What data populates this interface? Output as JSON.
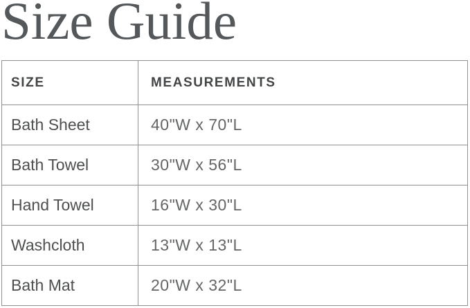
{
  "page": {
    "title": "Size Guide"
  },
  "colors": {
    "title_text": "#54585a",
    "header_text": "#424445",
    "row_size_text": "#4d4f50",
    "row_measurement_text": "#636566",
    "table_border": "#8f8f8f",
    "background": "#ffffff"
  },
  "table": {
    "columns": [
      {
        "label": "SIZE"
      },
      {
        "label": "MEASUREMENTS"
      }
    ],
    "rows": [
      {
        "size": "Bath Sheet",
        "measurements": "40\"W x 70\"L"
      },
      {
        "size": "Bath Towel",
        "measurements": "30\"W x 56\"L"
      },
      {
        "size": "Hand Towel",
        "measurements": "16\"W x 30\"L"
      },
      {
        "size": "Washcloth",
        "measurements": "13\"W x 13\"L"
      },
      {
        "size": "Bath Mat",
        "measurements": "20\"W x 32\"L"
      }
    ]
  }
}
